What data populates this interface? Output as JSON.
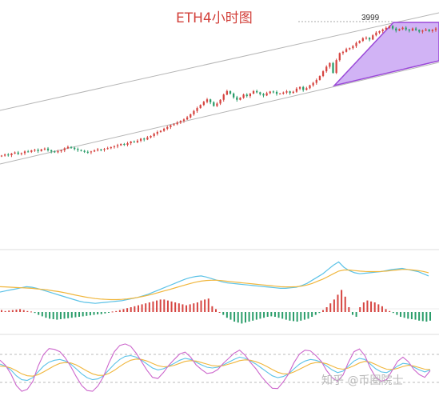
{
  "chart_data": {
    "type": "candlestick",
    "title": "ETH4小时图",
    "price_label": "3999",
    "grid": false,
    "colors": {
      "up": "#d64541",
      "down": "#2a9d6a",
      "channel": "#b5b5b5",
      "triangle_fill": "#c9a6f3",
      "triangle_edge": "#9a48d8",
      "macd_dif": "#5bc2e7",
      "macd_dea": "#f0b63c",
      "kdj_k": "#5bc2e7",
      "kdj_d": "#f0b63c",
      "kdj_j": "#cc66cc"
    },
    "price_closes": [
      3360,
      3365,
      3362,
      3370,
      3375,
      3368,
      3372,
      3380,
      3378,
      3385,
      3388,
      3382,
      3390,
      3394,
      3386,
      3380,
      3376,
      3381,
      3386,
      3395,
      3402,
      3398,
      3392,
      3387,
      3383,
      3378,
      3376,
      3380,
      3385,
      3390,
      3388,
      3392,
      3396,
      3401,
      3405,
      3410,
      3416,
      3412,
      3420,
      3428,
      3425,
      3432,
      3442,
      3438,
      3448,
      3455,
      3466,
      3474,
      3480,
      3490,
      3498,
      3507,
      3512,
      3520,
      3528,
      3535,
      3545,
      3560,
      3576,
      3590,
      3605,
      3620,
      3632,
      3618,
      3600,
      3612,
      3630,
      3655,
      3672,
      3660,
      3642,
      3630,
      3640,
      3655,
      3648,
      3660,
      3672,
      3666,
      3658,
      3651,
      3662,
      3670,
      3668,
      3659,
      3660,
      3665,
      3671,
      3663,
      3669,
      3684,
      3692,
      3678,
      3686,
      3700,
      3712,
      3726,
      3745,
      3768,
      3790,
      3808,
      3760,
      3822,
      3856,
      3862,
      3875,
      3880,
      3890,
      3905,
      3915,
      3928,
      3930,
      3922,
      3942,
      3955,
      3962,
      3970,
      3978,
      3987,
      3975,
      3965,
      3972,
      3979,
      3970,
      3965,
      3975,
      3968,
      3960,
      3965,
      3970,
      3962,
      3968,
      3975
    ],
    "macd_hist": [
      0.2,
      0.1,
      0.15,
      0.2,
      0.25,
      0.3,
      0.2,
      0.1,
      0.05,
      -0.1,
      -0.3,
      -0.45,
      -0.6,
      -0.7,
      -0.75,
      -0.8,
      -0.75,
      -0.7,
      -0.65,
      -0.6,
      -0.55,
      -0.5,
      -0.45,
      -0.4,
      -0.35,
      -0.3,
      -0.25,
      -0.22,
      -0.15,
      -0.05,
      0.05,
      0.1,
      0.2,
      0.3,
      0.4,
      0.5,
      0.6,
      0.7,
      0.8,
      0.9,
      1,
      1.1,
      1.2,
      1.3,
      1.3,
      1.2,
      1.1,
      1.0,
      0.9,
      0.8,
      0.7,
      0.8,
      0.9,
      1.0,
      1.2,
      1.3,
      1.4,
      0.6,
      0.3,
      0,
      -0.3,
      -0.6,
      -0.8,
      -1.0,
      -1.1,
      -1.2,
      -1.1,
      -1.0,
      -0.9,
      -0.8,
      -0.7,
      -0.6,
      -0.5,
      -0.45,
      -0.5,
      -0.6,
      -0.7,
      -0.8,
      -0.9,
      -0.95,
      -1.0,
      -0.9,
      -0.8,
      -0.7,
      -0.5,
      -0.3,
      -0.1,
      0.2,
      0.5,
      0.9,
      1.3,
      1.8,
      2.3,
      1.6,
      0.5,
      -0.3,
      -0.5,
      0.5,
      1.0,
      1.2,
      1.1,
      1.0,
      0.8,
      0.6,
      0.3,
      0.1,
      -0.1,
      -0.3,
      -0.5,
      -0.6,
      -0.7,
      -0.75,
      -0.8,
      -0.9,
      -0.95,
      -1.0,
      -0.9
    ],
    "macd_dif": [
      0.5,
      0.6,
      0.7,
      0.8,
      0.9,
      1.0,
      0.95,
      0.85,
      0.7,
      0.55,
      0.4,
      0.25,
      0.1,
      -0.05,
      -0.2,
      -0.35,
      -0.45,
      -0.5,
      -0.55,
      -0.5,
      -0.45,
      -0.4,
      -0.35,
      -0.3,
      -0.2,
      -0.1,
      0,
      0.15,
      0.3,
      0.5,
      0.7,
      0.9,
      1.1,
      1.3,
      1.5,
      1.7,
      1.85,
      1.95,
      2.0,
      1.9,
      1.75,
      1.6,
      1.45,
      1.35,
      1.3,
      1.25,
      1.2,
      1.15,
      1.1,
      1.05,
      1.0,
      0.95,
      0.9,
      0.85,
      0.85,
      0.9,
      0.95,
      1.1,
      1.3,
      1.6,
      1.9,
      2.2,
      2.6,
      3.0,
      3.3,
      2.8,
      2.5,
      2.3,
      2.2,
      2.25,
      2.3,
      2.35,
      2.4,
      2.5,
      2.6,
      2.65,
      2.7,
      2.6,
      2.5,
      2.4,
      2.2,
      2.0
    ],
    "macd_dea": [
      1.0,
      0.98,
      0.95,
      0.92,
      0.9,
      0.88,
      0.85,
      0.8,
      0.75,
      0.7,
      0.62,
      0.55,
      0.46,
      0.36,
      0.25,
      0.15,
      0.05,
      -0.03,
      -0.1,
      -0.15,
      -0.18,
      -0.2,
      -0.2,
      -0.18,
      -0.14,
      -0.08,
      0,
      0.1,
      0.2,
      0.33,
      0.46,
      0.6,
      0.74,
      0.88,
      1.02,
      1.16,
      1.3,
      1.42,
      1.52,
      1.58,
      1.6,
      1.6,
      1.56,
      1.5,
      1.45,
      1.4,
      1.35,
      1.3,
      1.25,
      1.2,
      1.15,
      1.1,
      1.05,
      1.0,
      0.98,
      0.98,
      1.0,
      1.05,
      1.15,
      1.3,
      1.5,
      1.7,
      1.95,
      2.2,
      2.45,
      2.55,
      2.55,
      2.5,
      2.45,
      2.42,
      2.4,
      2.4,
      2.42,
      2.45,
      2.5,
      2.55,
      2.6,
      2.6,
      2.55,
      2.5,
      2.42,
      2.3
    ],
    "kdj_k": [
      60,
      55,
      45,
      30,
      20,
      18,
      25,
      40,
      55,
      65,
      70,
      72,
      68,
      60,
      48,
      35,
      25,
      20,
      22,
      30,
      45,
      60,
      72,
      80,
      82,
      78,
      70,
      60,
      50,
      45,
      48,
      55,
      62,
      70,
      75,
      72,
      65,
      58,
      52,
      50,
      52,
      58,
      65,
      72,
      78,
      75,
      68,
      60,
      50,
      40,
      30,
      25,
      28,
      35,
      48,
      60,
      68,
      72,
      70,
      65,
      55,
      45,
      38,
      42,
      55,
      68,
      75,
      72,
      60,
      48,
      40,
      38,
      45,
      55,
      62,
      60,
      52,
      45,
      40,
      45
    ],
    "kdj_d": [
      55,
      54,
      50,
      43,
      35,
      30,
      29,
      33,
      40,
      48,
      56,
      62,
      64,
      63,
      58,
      50,
      42,
      35,
      31,
      31,
      36,
      44,
      54,
      63,
      70,
      73,
      72,
      68,
      62,
      56,
      53,
      54,
      57,
      62,
      67,
      69,
      68,
      64,
      60,
      56,
      55,
      56,
      60,
      64,
      69,
      71,
      70,
      66,
      61,
      54,
      46,
      39,
      35,
      35,
      40,
      47,
      54,
      61,
      64,
      64,
      61,
      55,
      49,
      47,
      50,
      56,
      63,
      67,
      65,
      59,
      52,
      47,
      46,
      49,
      54,
      57,
      55,
      51,
      47,
      46
    ],
    "kdj_j": [
      70,
      57,
      35,
      5,
      -10,
      -5,
      15,
      55,
      85,
      100,
      98,
      92,
      76,
      54,
      28,
      5,
      -8,
      -10,
      4,
      28,
      63,
      92,
      108,
      112,
      106,
      88,
      66,
      44,
      26,
      23,
      38,
      57,
      72,
      86,
      91,
      78,
      58,
      46,
      36,
      38,
      46,
      62,
      75,
      88,
      96,
      83,
      64,
      48,
      28,
      12,
      -2,
      -3,
      14,
      35,
      64,
      86,
      96,
      94,
      82,
      67,
      43,
      25,
      16,
      32,
      65,
      92,
      99,
      82,
      50,
      26,
      16,
      20,
      43,
      67,
      78,
      66,
      46,
      33,
      26,
      43
    ]
  },
  "watermark": {
    "text": "知乎 @币圈院士"
  }
}
